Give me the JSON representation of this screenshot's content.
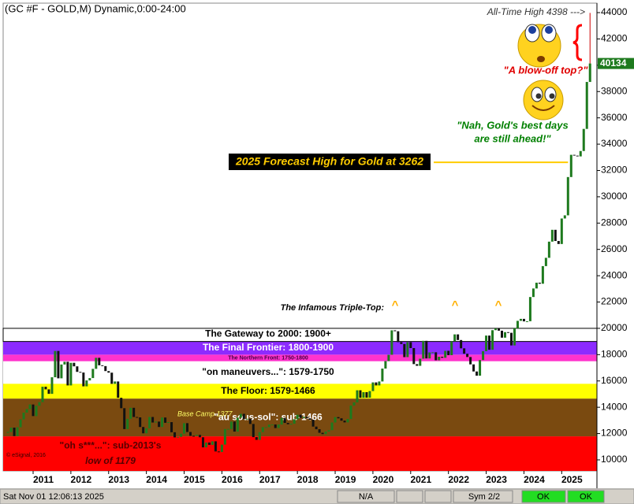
{
  "chart_data": {
    "type": "candlestick",
    "title": "(GC #F - GOLD,M) Dynamic,0:00-24:00",
    "categories": [
      null,
      null,
      null,
      null,
      null,
      null,
      null,
      null,
      "2011",
      null,
      null,
      null,
      null,
      null,
      null,
      null,
      null,
      null,
      null,
      null,
      "2012",
      null,
      null,
      null,
      null,
      null,
      null,
      null,
      null,
      null,
      null,
      null,
      "2013",
      null,
      null,
      null,
      null,
      null,
      null,
      null,
      null,
      null,
      null,
      null,
      "2014",
      null,
      null,
      null,
      null,
      null,
      null,
      null,
      null,
      null,
      null,
      null,
      "2015",
      null,
      null,
      null,
      null,
      null,
      null,
      null,
      null,
      null,
      null,
      null,
      "2016",
      null,
      null,
      null,
      null,
      null,
      null,
      null,
      null,
      null,
      null,
      null,
      "2017",
      null,
      null,
      null,
      null,
      null,
      null,
      null,
      null,
      null,
      null,
      null,
      "2018",
      null,
      null,
      null,
      null,
      null,
      null,
      null,
      null,
      null,
      null,
      null,
      "2019",
      null,
      null,
      null,
      null,
      null,
      null,
      null,
      null,
      null,
      null,
      null,
      "2020",
      null,
      null,
      null,
      null,
      null,
      null,
      null,
      null,
      null,
      null,
      null,
      "2021",
      null,
      null,
      null,
      null,
      null,
      null,
      null,
      null,
      null,
      null,
      null,
      "2022",
      null,
      null,
      null,
      null,
      null,
      null,
      null,
      null,
      null,
      null,
      null,
      "2023",
      null,
      null,
      null,
      null,
      null,
      null,
      null,
      null,
      null,
      null,
      null,
      "2024",
      null,
      null,
      null,
      null,
      null,
      null,
      null,
      null,
      null,
      null,
      null,
      "2025",
      null,
      null,
      null,
      null,
      null,
      null,
      null,
      null,
      null
    ],
    "close": [
      12120,
      12450,
      11810,
      12480,
      13080,
      13590,
      13860,
      14210,
      13330,
      14110,
      14390,
      15560,
      15360,
      15020,
      16280,
      18280,
      16200,
      17250,
      17460,
      15660,
      17380,
      17110,
      16690,
      16640,
      15590,
      16040,
      16220,
      16920,
      17760,
      17190,
      17130,
      16750,
      16630,
      15780,
      15960,
      14720,
      13930,
      12340,
      13120,
      13960,
      13260,
      13230,
      12500,
      12020,
      12400,
      13260,
      12840,
      12910,
      12500,
      13220,
      12820,
      12870,
      12100,
      11710,
      11750,
      11990,
      12790,
      12120,
      11830,
      11820,
      11900,
      11720,
      10950,
      11320,
      11140,
      11410,
      10640,
      10600,
      11160,
      12340,
      12350,
      12910,
      12150,
      13210,
      13500,
      13090,
      13130,
      12730,
      11730,
      11520,
      12110,
      12490,
      12490,
      12680,
      12690,
      12420,
      12690,
      13190,
      12810,
      12710,
      12750,
      13090,
      13430,
      13180,
      13270,
      13160,
      13050,
      12530,
      12330,
      12060,
      11960,
      12150,
      12260,
      12840,
      13250,
      13160,
      12980,
      12850,
      13110,
      14130,
      14370,
      15290,
      14720,
      15150,
      14730,
      15230,
      15890,
      15660,
      15960,
      16940,
      17510,
      17990,
      19850,
      19780,
      18950,
      18810,
      17810,
      18950,
      18500,
      17280,
      17150,
      17690,
      19050,
      17710,
      18170,
      18180,
      17570,
      17840,
      17760,
      18290,
      17960,
      19000,
      19540,
      19110,
      18480,
      18070,
      17820,
      17260,
      16720,
      16400,
      17590,
      18260,
      19450,
      18370,
      19860,
      19990,
      19820,
      19290,
      19710,
      19660,
      18700,
      20000,
      20570,
      20720,
      20530,
      20540,
      22380,
      23030,
      23470,
      23390,
      24730,
      25360,
      26590,
      27490,
      26640,
      26410,
      28350,
      28590,
      31500,
      33190,
      33130,
      33070,
      33480,
      35160,
      38730,
      40134
    ],
    "up_color": "#1e7a1e",
    "down_color": "#111111",
    "ylim": [
      9160,
      44720
    ],
    "yticks": [
      10000,
      12000,
      14000,
      16000,
      18000,
      20000,
      22000,
      24000,
      26000,
      28000,
      30000,
      32000,
      34000,
      36000,
      38000,
      40000,
      42000,
      44000
    ],
    "last_price": 40134,
    "all_time_high": {
      "label": "All-Time High 4398 --->",
      "value": 43980
    },
    "bands": [
      {
        "label": "\"oh s***...\":  sub-2013's",
        "label2": "low of 1179",
        "from": 9160,
        "to": 11790,
        "color": "#ff0000",
        "text_color": "#550000"
      },
      {
        "label": "\"au sous-sol\":  sub-1466",
        "from": 11790,
        "to": 14660,
        "color": "#7a4a10",
        "text_color": "#ffffff"
      },
      {
        "label": "The Floor:  1579-1466",
        "from": 14660,
        "to": 15790,
        "color": "#ffff00",
        "text_color": "#000000"
      },
      {
        "label": "\"on maneuvers...\":  1579-1750",
        "from": 15790,
        "to": 17500,
        "color": "#ffffff",
        "text_color": "#000000"
      },
      {
        "label": "The Northern Front:  1750-1800",
        "from": 17500,
        "to": 18000,
        "color": "#ff33cc",
        "text_color": "#440044"
      },
      {
        "label": "The Final Frontier:  1800-1900",
        "from": 18000,
        "to": 19000,
        "color": "#8c2bff",
        "text_color": "#ffffff"
      },
      {
        "label": "The Gateway to 2000:  1900+",
        "from": 19000,
        "to": 20000,
        "color": "#ffffff",
        "text_color": "#000000"
      }
    ],
    "base_camp": "Base Camp 1377",
    "copyright": "© eSignal, 2016",
    "forecast": {
      "label": "2025 Forecast High for Gold at 3262",
      "value": 32620,
      "color": "#ffcc00"
    },
    "triple_top": {
      "label": "The Infamous Triple-Top:",
      "marks": [
        "^",
        "^",
        "^"
      ]
    },
    "quote_1": "\"A blow-off top?\"",
    "quote_2": [
      "\"Nah, Gold's best days",
      "are still ahead!\""
    ],
    "status": {
      "time": "Sat Nov 01 12:06:13 2025",
      "na": "N/A",
      "sym": "Sym 2/2",
      "ok1": "OK",
      "ok2": "OK"
    }
  }
}
